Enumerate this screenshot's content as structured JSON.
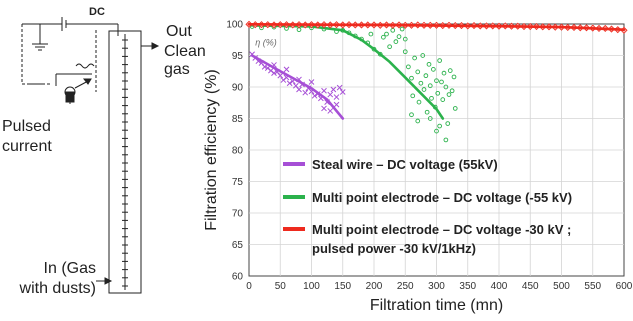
{
  "diagram": {
    "dc_label": "DC",
    "out_label": "Out",
    "clean_gas_label": "Clean\ngas",
    "pulsed_current_label": "Pulsed\ncurrent",
    "in_gas_label": "In (Gas\nwith dusts)"
  },
  "chart_data": {
    "type": "scatter",
    "xlabel": "Filtration time (mn)",
    "ylabel": "Filtration efficiency (%)",
    "xlim": [
      0,
      600
    ],
    "ylim": [
      60,
      100
    ],
    "xticks": [
      0,
      50,
      100,
      150,
      200,
      250,
      300,
      350,
      400,
      450,
      500,
      550,
      600
    ],
    "yticks": [
      60,
      65,
      70,
      75,
      80,
      85,
      90,
      95,
      100
    ],
    "grid": true,
    "legend_position": "center",
    "inner_annotation": "η (%)",
    "series": [
      {
        "name": "Steal wire – DC voltage (55kV)",
        "color": "#a64fd6",
        "marker": "x",
        "points": [
          [
            5,
            95.2
          ],
          [
            10,
            94.6
          ],
          [
            15,
            94.1
          ],
          [
            20,
            93.8
          ],
          [
            25,
            93.2
          ],
          [
            30,
            93.0
          ],
          [
            35,
            92.6
          ],
          [
            40,
            92.2
          ],
          [
            45,
            92.4
          ],
          [
            50,
            91.8
          ],
          [
            55,
            91.1
          ],
          [
            60,
            91.5
          ],
          [
            65,
            90.6
          ],
          [
            70,
            90.9
          ],
          [
            75,
            90.2
          ],
          [
            80,
            89.6
          ],
          [
            85,
            90.4
          ],
          [
            90,
            89.1
          ],
          [
            95,
            89.8
          ],
          [
            100,
            89.3
          ],
          [
            105,
            88.6
          ],
          [
            110,
            88.9
          ],
          [
            115,
            88.2
          ],
          [
            120,
            89.4
          ],
          [
            125,
            87.6
          ],
          [
            130,
            88.8
          ],
          [
            135,
            89.6
          ],
          [
            140,
            88.4
          ],
          [
            145,
            89.9
          ],
          [
            150,
            89.2
          ],
          [
            40,
            93.5
          ],
          [
            60,
            92.8
          ],
          [
            80,
            91.2
          ],
          [
            100,
            90.8
          ],
          [
            120,
            86.6
          ],
          [
            130,
            86.2
          ],
          [
            140,
            87.2
          ]
        ],
        "fit": [
          [
            5,
            95.0
          ],
          [
            50,
            92.5
          ],
          [
            100,
            89.8
          ],
          [
            125,
            88.0
          ],
          [
            150,
            85.0
          ]
        ]
      },
      {
        "name": "Multi point electrode – DC voltage (-55 kV)",
        "color": "#2bb24c",
        "marker": "o",
        "points": [
          [
            5,
            99.6
          ],
          [
            20,
            99.4
          ],
          [
            40,
            99.5
          ],
          [
            60,
            99.3
          ],
          [
            80,
            99.1
          ],
          [
            100,
            99.4
          ],
          [
            120,
            99.2
          ],
          [
            140,
            98.8
          ],
          [
            150,
            99.0
          ],
          [
            160,
            98.6
          ],
          [
            170,
            98.1
          ],
          [
            180,
            97.6
          ],
          [
            190,
            97.0
          ],
          [
            200,
            96.0
          ],
          [
            210,
            95.2
          ],
          [
            220,
            98.4
          ],
          [
            225,
            96.4
          ],
          [
            230,
            99.0
          ],
          [
            240,
            98.0
          ],
          [
            245,
            99.2
          ],
          [
            250,
            95.6
          ],
          [
            255,
            93.2
          ],
          [
            260,
            91.4
          ],
          [
            262,
            88.6
          ],
          [
            265,
            94.6
          ],
          [
            270,
            92.4
          ],
          [
            272,
            87.6
          ],
          [
            275,
            90.6
          ],
          [
            278,
            95.0
          ],
          [
            280,
            89.6
          ],
          [
            283,
            91.8
          ],
          [
            285,
            86.0
          ],
          [
            288,
            93.6
          ],
          [
            290,
            90.2
          ],
          [
            292,
            88.2
          ],
          [
            295,
            92.8
          ],
          [
            298,
            86.8
          ],
          [
            300,
            91.0
          ],
          [
            302,
            89.0
          ],
          [
            305,
            94.2
          ],
          [
            308,
            90.8
          ],
          [
            310,
            88.0
          ],
          [
            312,
            92.2
          ],
          [
            315,
            90.0
          ],
          [
            318,
            84.2
          ],
          [
            320,
            88.8
          ],
          [
            322,
            92.6
          ],
          [
            325,
            89.4
          ],
          [
            328,
            91.6
          ],
          [
            330,
            86.6
          ],
          [
            300,
            83.0
          ],
          [
            305,
            83.8
          ],
          [
            315,
            81.6
          ],
          [
            290,
            85.0
          ],
          [
            270,
            84.6
          ],
          [
            260,
            85.6
          ],
          [
            250,
            97.6
          ],
          [
            235,
            97.2
          ],
          [
            215,
            97.9
          ],
          [
            195,
            98.4
          ]
        ],
        "fit": [
          [
            0,
            99.8
          ],
          [
            100,
            99.6
          ],
          [
            150,
            99.0
          ],
          [
            180,
            97.5
          ],
          [
            200,
            96.0
          ],
          [
            225,
            94.0
          ],
          [
            250,
            91.5
          ],
          [
            275,
            89.0
          ],
          [
            300,
            86.5
          ],
          [
            310,
            85.0
          ]
        ]
      },
      {
        "name": "Multi point electrode – DC voltage -30 kV ;\npulsed power -30 kV/1kHz)",
        "color": "#ee2a1e",
        "marker": "D",
        "points": [
          [
            0,
            99.95
          ],
          [
            10,
            99.9
          ],
          [
            20,
            99.9
          ],
          [
            30,
            99.9
          ],
          [
            40,
            99.85
          ],
          [
            50,
            99.9
          ],
          [
            60,
            99.9
          ],
          [
            70,
            99.85
          ],
          [
            80,
            99.9
          ],
          [
            90,
            99.85
          ],
          [
            100,
            99.9
          ],
          [
            110,
            99.85
          ],
          [
            120,
            99.9
          ],
          [
            130,
            99.85
          ],
          [
            140,
            99.9
          ],
          [
            150,
            99.85
          ],
          [
            160,
            99.9
          ],
          [
            170,
            99.85
          ],
          [
            180,
            99.85
          ],
          [
            190,
            99.85
          ],
          [
            200,
            99.85
          ],
          [
            210,
            99.8
          ],
          [
            220,
            99.85
          ],
          [
            230,
            99.8
          ],
          [
            240,
            99.85
          ],
          [
            250,
            99.8
          ],
          [
            260,
            99.8
          ],
          [
            270,
            99.85
          ],
          [
            280,
            99.8
          ],
          [
            290,
            99.8
          ],
          [
            300,
            99.8
          ],
          [
            310,
            99.75
          ],
          [
            320,
            99.8
          ],
          [
            330,
            99.75
          ],
          [
            340,
            99.75
          ],
          [
            350,
            99.7
          ],
          [
            360,
            99.75
          ],
          [
            370,
            99.7
          ],
          [
            380,
            99.7
          ],
          [
            390,
            99.7
          ],
          [
            400,
            99.65
          ],
          [
            410,
            99.7
          ],
          [
            420,
            99.65
          ],
          [
            430,
            99.65
          ],
          [
            440,
            99.6
          ],
          [
            450,
            99.6
          ],
          [
            460,
            99.6
          ],
          [
            470,
            99.55
          ],
          [
            480,
            99.55
          ],
          [
            490,
            99.5
          ],
          [
            500,
            99.5
          ],
          [
            510,
            99.45
          ],
          [
            520,
            99.45
          ],
          [
            530,
            99.4
          ],
          [
            540,
            99.4
          ],
          [
            550,
            99.35
          ],
          [
            560,
            99.3
          ],
          [
            570,
            99.3
          ],
          [
            580,
            99.2
          ],
          [
            590,
            99.1
          ],
          [
            600,
            99.0
          ]
        ],
        "fit": [
          [
            0,
            99.95
          ],
          [
            200,
            99.85
          ],
          [
            400,
            99.65
          ],
          [
            500,
            99.5
          ],
          [
            600,
            99.1
          ]
        ]
      }
    ]
  }
}
